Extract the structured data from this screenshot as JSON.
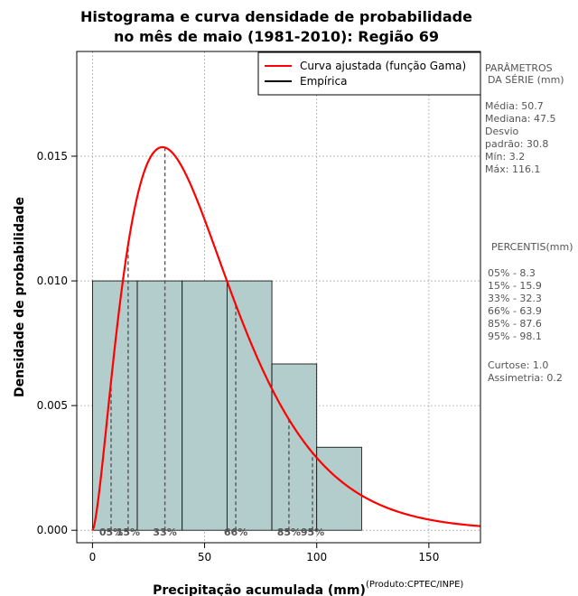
{
  "chart_data": {
    "type": "bar",
    "title_line1": "Histograma e curva densidade de probabilidade",
    "title_line2": "no mês de maio (1981-2010): Região 69",
    "xlabel": "Precipitação acumulada (mm)",
    "ylabel": "Densidade de probabilidade",
    "credit": "(Produto:CPTEC/INPE)",
    "xlim": [
      -7,
      173
    ],
    "ylim": [
      -0.0005,
      0.0192
    ],
    "xticks": [
      0,
      50,
      100,
      150
    ],
    "yticks": [
      0.0,
      0.005,
      0.01,
      0.015
    ],
    "ytick_labels": [
      "0.000",
      "0.005",
      "0.010",
      "0.015"
    ],
    "grid": true,
    "bins": [
      {
        "x0": 0,
        "x1": 20,
        "density": 0.01
      },
      {
        "x0": 20,
        "x1": 40,
        "density": 0.01
      },
      {
        "x0": 40,
        "x1": 60,
        "density": 0.01
      },
      {
        "x0": 60,
        "x1": 80,
        "density": 0.01
      },
      {
        "x0": 80,
        "x1": 100,
        "density": 0.00667
      },
      {
        "x0": 100,
        "x1": 120,
        "density": 0.00333
      }
    ],
    "gamma_fit": {
      "shape": 2.6,
      "scale": 19.5
    },
    "legend": {
      "position": "top-right",
      "items": [
        {
          "label": "Curva ajustada (função Gama)",
          "color": "#ff0000"
        },
        {
          "label": "Empírica",
          "color": "#000000"
        }
      ]
    },
    "percentile_lines": [
      {
        "label": "05%",
        "x": 8.3
      },
      {
        "label": "15%",
        "x": 15.9
      },
      {
        "label": "33%",
        "x": 32.3
      },
      {
        "label": "66%",
        "x": 63.9
      },
      {
        "label": "85%",
        "x": 87.6
      },
      {
        "label": "95%",
        "x": 98.1
      }
    ],
    "bar_color": "#b3cccc",
    "curve_color": "#ff0000"
  },
  "side_panel": {
    "params_title_1": "PARÂMETROS",
    "params_title_2": "DA SÉRIE (mm)",
    "media": "Média:  50.7",
    "mediana": "Mediana:  47.5",
    "desvio_1": "Desvio",
    "desvio_2": "padrão:  30.8",
    "min": "Mín:  3.2",
    "max": "Máx:  116.1",
    "perc_title": "PERCENTIS(mm)",
    "p05": "05% -  8.3",
    "p15": "15% -  15.9",
    "p33": "33% -  32.3",
    "p66": "66% -  63.9",
    "p85": "85% -  87.6",
    "p95": "95% -  98.1",
    "curtose": "Curtose:  1.0",
    "assimetria": "Assimetria:  0.2"
  }
}
